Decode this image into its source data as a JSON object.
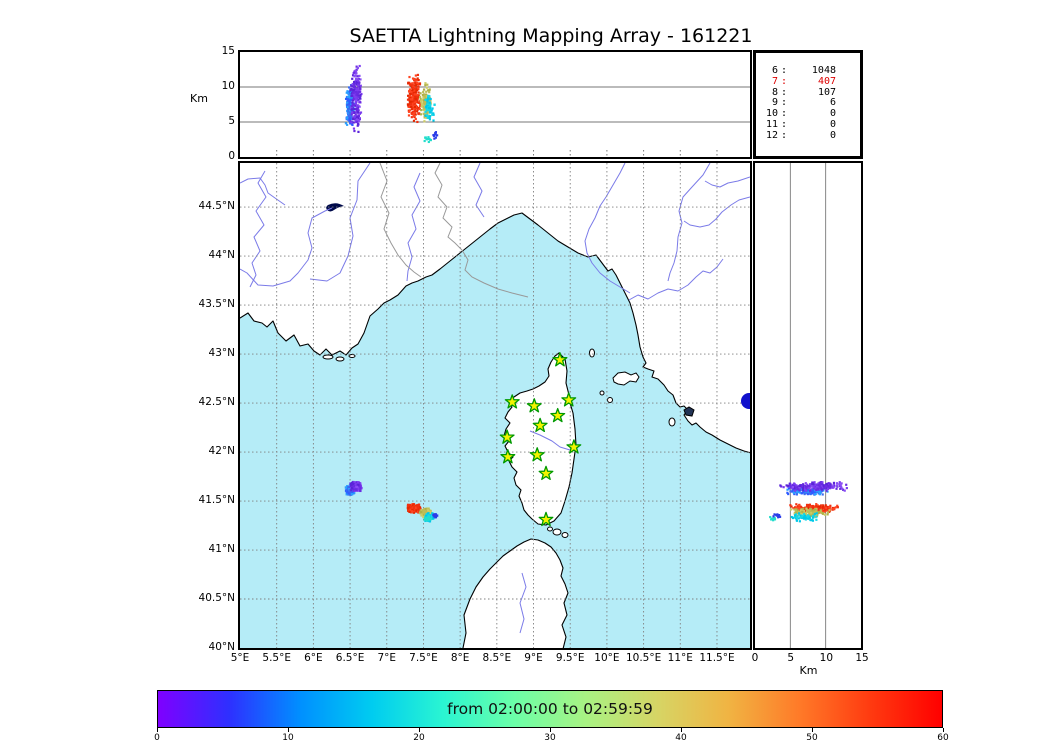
{
  "title": "SAETTA Lightning Mapping Array - 161221",
  "colorbar": {
    "label": "from 02:00:00 to 02:59:59",
    "ticks": [
      0,
      10,
      20,
      30,
      40,
      50,
      60
    ],
    "min": 0,
    "max": 60,
    "gradient": [
      "#7f00ff",
      "#2e30ff",
      "#0090ff",
      "#00ccf0",
      "#2af5d2",
      "#6bffa8",
      "#a8f283",
      "#d6d565",
      "#f0b443",
      "#ff7a28",
      "#ff3a10",
      "#ff0000"
    ]
  },
  "station_table": {
    "rows": [
      {
        "station": "6",
        "count": "1048",
        "color": "#000000"
      },
      {
        "station": "7",
        "count": "407",
        "color": "#dd0000"
      },
      {
        "station": "8",
        "count": "107",
        "color": "#000000"
      },
      {
        "station": "9",
        "count": "6",
        "color": "#000000"
      },
      {
        "station": "10",
        "count": "0",
        "color": "#000000"
      },
      {
        "station": "11",
        "count": "0",
        "color": "#000000"
      },
      {
        "station": "12",
        "count": "0",
        "color": "#000000"
      }
    ]
  },
  "axes": {
    "map_x_ticks": [
      {
        "v": 5,
        "label": "5°E"
      },
      {
        "v": 5.5,
        "label": "5.5°E"
      },
      {
        "v": 6,
        "label": "6°E"
      },
      {
        "v": 6.5,
        "label": "6.5°E"
      },
      {
        "v": 7,
        "label": "7°E"
      },
      {
        "v": 7.5,
        "label": "7.5°E"
      },
      {
        "v": 8,
        "label": "8°E"
      },
      {
        "v": 8.5,
        "label": "8.5°E"
      },
      {
        "v": 9,
        "label": "9°E"
      },
      {
        "v": 9.5,
        "label": "9.5°E"
      },
      {
        "v": 10,
        "label": "10°E"
      },
      {
        "v": 10.5,
        "label": "10.5°E"
      },
      {
        "v": 11,
        "label": "11°E"
      },
      {
        "v": 11.5,
        "label": "11.5°E"
      }
    ],
    "map_y_ticks": [
      {
        "v": 40,
        "label": "40°N"
      },
      {
        "v": 40.5,
        "label": "40.5°N"
      },
      {
        "v": 41,
        "label": "41°N"
      },
      {
        "v": 41.5,
        "label": "41.5°N"
      },
      {
        "v": 42,
        "label": "42°N"
      },
      {
        "v": 42.5,
        "label": "42.5°N"
      },
      {
        "v": 43,
        "label": "43°N"
      },
      {
        "v": 43.5,
        "label": "43.5°N"
      },
      {
        "v": 44,
        "label": "44°N"
      },
      {
        "v": 44.5,
        "label": "44.5°N"
      }
    ],
    "altitude_ticks": [
      {
        "v": 0,
        "label": "0"
      },
      {
        "v": 5,
        "label": "5"
      },
      {
        "v": 10,
        "label": "10"
      },
      {
        "v": 15,
        "label": "15"
      }
    ],
    "altitude_unit": "Km",
    "map_xlim": [
      5,
      11.95
    ],
    "map_ylim": [
      40,
      44.95
    ],
    "alt_lim_km": [
      0,
      15
    ]
  },
  "map_colors": {
    "sea": "#b5ecf7",
    "land": "#ffffff",
    "coast": "#000000",
    "river": "#7b7be8",
    "border": "#999999",
    "grid": "#808080",
    "lake": "#1111cc",
    "alpine_lake": "#000a4a",
    "station_fill": "#f3f300",
    "station_stroke": "#009900"
  },
  "chart_data": {
    "type": "scatter",
    "description": "Lightning VHF source locations for hour 02:00:00-02:59:59 on 161221. Three linked panels: longitude vs altitude (top), longitude vs latitude map (center), altitude vs latitude (right). Point color = time within the hour (rainbow colorbar 0-60 min).",
    "panels": {
      "top": {
        "x": "longitude (5°E-11.95°E)",
        "y": "altitude 0-15 Km",
        "gridlines_km": [
          5,
          10
        ]
      },
      "map": {
        "x": "longitude (5°E-11.95°E)",
        "y": "latitude 40°N-44.95°N",
        "grid": "dotted 0.5° graticule"
      },
      "right": {
        "x": "altitude 0-15 Km",
        "y": "latitude 40°N-44.95°N",
        "gridlines_km": [
          5,
          10
        ]
      }
    },
    "clusters": [
      {
        "name": "storm-cell-west-blue",
        "n": 150,
        "lon": [
          6.44,
          6.56
        ],
        "lat": [
          41.56,
          41.66
        ],
        "alt_km": [
          4.0,
          10.5
        ],
        "colors": [
          "#2e5bff",
          "#2aa0ff",
          "#3b6cf0"
        ]
      },
      {
        "name": "storm-cell-west-purple",
        "n": 230,
        "lon": [
          6.5,
          6.66
        ],
        "lat": [
          41.6,
          41.7
        ],
        "alt_km": [
          3.5,
          13.2
        ],
        "colors": [
          "#6a2be2",
          "#7d3cf0",
          "#5a25d8",
          "#8a4cf5"
        ]
      },
      {
        "name": "storm-cell-east-red",
        "n": 240,
        "lon": [
          7.28,
          7.47
        ],
        "lat": [
          41.38,
          41.47
        ],
        "alt_km": [
          4.8,
          11.8
        ],
        "colors": [
          "#f03010",
          "#ff4420",
          "#e52800"
        ]
      },
      {
        "name": "storm-cell-east-khaki",
        "n": 130,
        "lon": [
          7.45,
          7.62
        ],
        "lat": [
          41.33,
          41.43
        ],
        "alt_km": [
          4.5,
          11.0
        ],
        "colors": [
          "#bcbc58",
          "#cccc66",
          "#b0b048"
        ]
      },
      {
        "name": "storm-cell-east-cyan",
        "n": 55,
        "lon": [
          7.5,
          7.66
        ],
        "lat": [
          41.29,
          41.38
        ],
        "alt_km": [
          5.0,
          9.2
        ],
        "colors": [
          "#00c8e8",
          "#18d8e8"
        ]
      },
      {
        "name": "storm-cell-east-cyan-low",
        "n": 12,
        "lon": [
          7.48,
          7.62
        ],
        "lat": [
          41.29,
          41.35
        ],
        "alt_km": [
          1.8,
          3.6
        ],
        "colors": [
          "#22ddcc"
        ]
      },
      {
        "name": "storm-cell-east-blue-low",
        "n": 10,
        "lon": [
          7.62,
          7.7
        ],
        "lat": [
          41.32,
          41.38
        ],
        "alt_km": [
          2.2,
          3.9
        ],
        "colors": [
          "#2a3de8"
        ]
      }
    ],
    "stations_lma_network": [
      {
        "lon": 9.36,
        "lat": 42.94
      },
      {
        "lon": 8.71,
        "lat": 42.51
      },
      {
        "lon": 9.01,
        "lat": 42.47
      },
      {
        "lon": 9.48,
        "lat": 42.53
      },
      {
        "lon": 9.33,
        "lat": 42.37
      },
      {
        "lon": 9.09,
        "lat": 42.27
      },
      {
        "lon": 8.64,
        "lat": 42.15
      },
      {
        "lon": 9.55,
        "lat": 42.05
      },
      {
        "lon": 8.65,
        "lat": 41.95
      },
      {
        "lon": 9.05,
        "lat": 41.97
      },
      {
        "lon": 9.17,
        "lat": 41.78
      },
      {
        "lon": 9.17,
        "lat": 41.31
      }
    ],
    "station_counts": {
      "6": 1048,
      "7": 407,
      "8": 107,
      "9": 6,
      "10": 0,
      "11": 0,
      "12": 0
    }
  }
}
